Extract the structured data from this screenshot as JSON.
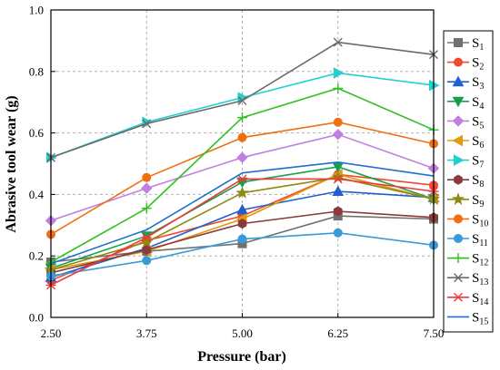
{
  "chart_data": {
    "type": "line",
    "title": "",
    "xlabel": "Pressure (bar)",
    "ylabel": "Abrasive tool wear (g)",
    "x": [
      2.5,
      3.75,
      5.0,
      6.25,
      7.5
    ],
    "x_tick_labels": [
      "2.50",
      "3.75",
      "5.00",
      "6.25",
      "7.50"
    ],
    "xlim": [
      2.5,
      7.5
    ],
    "ylim": [
      0.0,
      1.0
    ],
    "y_ticks": [
      0.0,
      0.2,
      0.4,
      0.6,
      0.8,
      1.0
    ],
    "y_tick_labels": [
      "0.0",
      "0.2",
      "0.4",
      "0.6",
      "0.8",
      "1.0"
    ],
    "grid": true,
    "legend_position": "right",
    "series": [
      {
        "name": "S1",
        "label_main": "S",
        "label_sub": "1",
        "color": "#707070",
        "marker": "square",
        "values": [
          0.18,
          0.215,
          0.24,
          0.33,
          0.32
        ]
      },
      {
        "name": "S2",
        "label_main": "S",
        "label_sub": "2",
        "color": "#f04a2a",
        "marker": "circle",
        "values": [
          0.12,
          0.25,
          0.33,
          0.465,
          0.43
        ]
      },
      {
        "name": "S3",
        "label_main": "S",
        "label_sub": "3",
        "color": "#1f5fd0",
        "marker": "triangle-up",
        "values": [
          0.13,
          0.225,
          0.35,
          0.41,
          0.39
        ]
      },
      {
        "name": "S4",
        "label_main": "S",
        "label_sub": "4",
        "color": "#18a050",
        "marker": "triangle-down",
        "values": [
          0.16,
          0.265,
          0.44,
          0.49,
          0.385
        ]
      },
      {
        "name": "S5",
        "label_main": "S",
        "label_sub": "5",
        "color": "#c080e0",
        "marker": "diamond",
        "values": [
          0.315,
          0.42,
          0.52,
          0.595,
          0.485
        ]
      },
      {
        "name": "S6",
        "label_main": "S",
        "label_sub": "6",
        "color": "#e09a10",
        "marker": "triangle-left",
        "values": [
          0.155,
          0.215,
          0.32,
          0.465,
          0.385
        ]
      },
      {
        "name": "S7",
        "label_main": "S",
        "label_sub": "7",
        "color": "#22d0d0",
        "marker": "triangle-right",
        "values": [
          0.52,
          0.635,
          0.715,
          0.795,
          0.755
        ]
      },
      {
        "name": "S8",
        "label_main": "S",
        "label_sub": "8",
        "color": "#8a3a3a",
        "marker": "hexagon",
        "values": [
          0.145,
          0.22,
          0.305,
          0.345,
          0.325
        ]
      },
      {
        "name": "S9",
        "label_main": "S",
        "label_sub": "9",
        "color": "#8c8a10",
        "marker": "star",
        "values": [
          0.155,
          0.245,
          0.405,
          0.455,
          0.385
        ]
      },
      {
        "name": "S10",
        "label_main": "S",
        "label_sub": "10",
        "color": "#f07010",
        "marker": "circle",
        "values": [
          0.27,
          0.455,
          0.585,
          0.635,
          0.565
        ]
      },
      {
        "name": "S11",
        "label_main": "S",
        "label_sub": "11",
        "color": "#3a9ad8",
        "marker": "circle",
        "values": [
          0.135,
          0.185,
          0.255,
          0.275,
          0.235
        ]
      },
      {
        "name": "S12",
        "label_main": "S",
        "label_sub": "12",
        "color": "#30c020",
        "marker": "plus",
        "values": [
          0.18,
          0.355,
          0.65,
          0.745,
          0.61
        ]
      },
      {
        "name": "S13",
        "label_main": "S",
        "label_sub": "13",
        "color": "#6a6a6a",
        "marker": "x",
        "values": [
          0.52,
          0.63,
          0.705,
          0.895,
          0.855
        ]
      },
      {
        "name": "S14",
        "label_main": "S",
        "label_sub": "14",
        "color": "#ee3a3a",
        "marker": "asterisk",
        "values": [
          0.105,
          0.26,
          0.45,
          0.45,
          0.41
        ]
      },
      {
        "name": "S15",
        "label_main": "S",
        "label_sub": "15",
        "color": "#1f6fd0",
        "marker": "none",
        "values": [
          0.175,
          0.285,
          0.47,
          0.505,
          0.46
        ]
      }
    ]
  }
}
